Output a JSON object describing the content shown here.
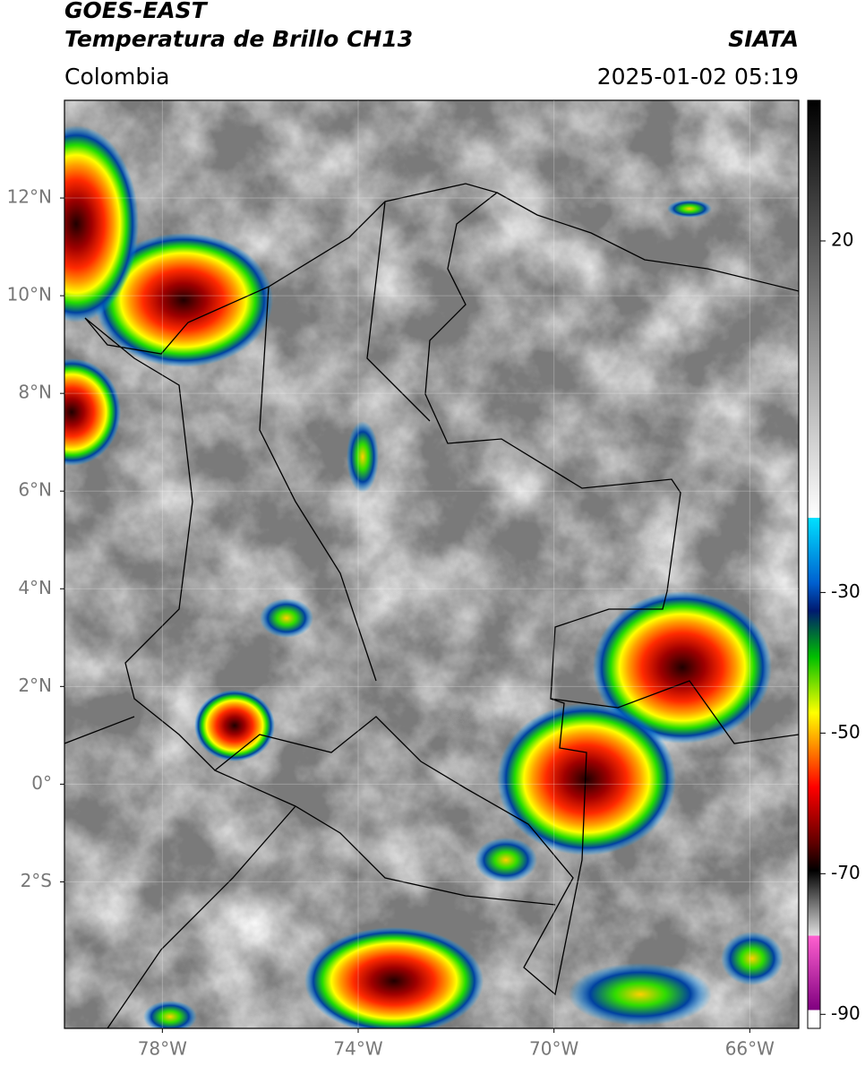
{
  "map": {
    "title": "GOES-EAST",
    "subtitle": "Temperatura de Brillo CH13",
    "source": "SIATA",
    "region": "Colombia",
    "datetime": "2025-01-02 05:19",
    "lonlim": [
      -80,
      -65
    ],
    "latlim": [
      -5,
      14
    ],
    "grid": true,
    "latticks": [
      {
        "value": 12,
        "label": "12°N"
      },
      {
        "value": 10,
        "label": "10°N"
      },
      {
        "value": 8,
        "label": "8°N"
      },
      {
        "value": 6,
        "label": "6°N"
      },
      {
        "value": 4,
        "label": "4°N"
      },
      {
        "value": 2,
        "label": "2°N"
      },
      {
        "value": 0,
        "label": "0°"
      },
      {
        "value": -2,
        "label": "2°S"
      }
    ],
    "lonticks": [
      {
        "value": -78,
        "label": "78°W"
      },
      {
        "value": -74,
        "label": "74°W"
      },
      {
        "value": -70,
        "label": "70°W"
      },
      {
        "value": -66,
        "label": "66°W"
      }
    ],
    "colorbar": {
      "lim": [
        -92,
        40
      ],
      "ticks": [
        20,
        -30,
        -50,
        -70,
        -90
      ]
    }
  }
}
